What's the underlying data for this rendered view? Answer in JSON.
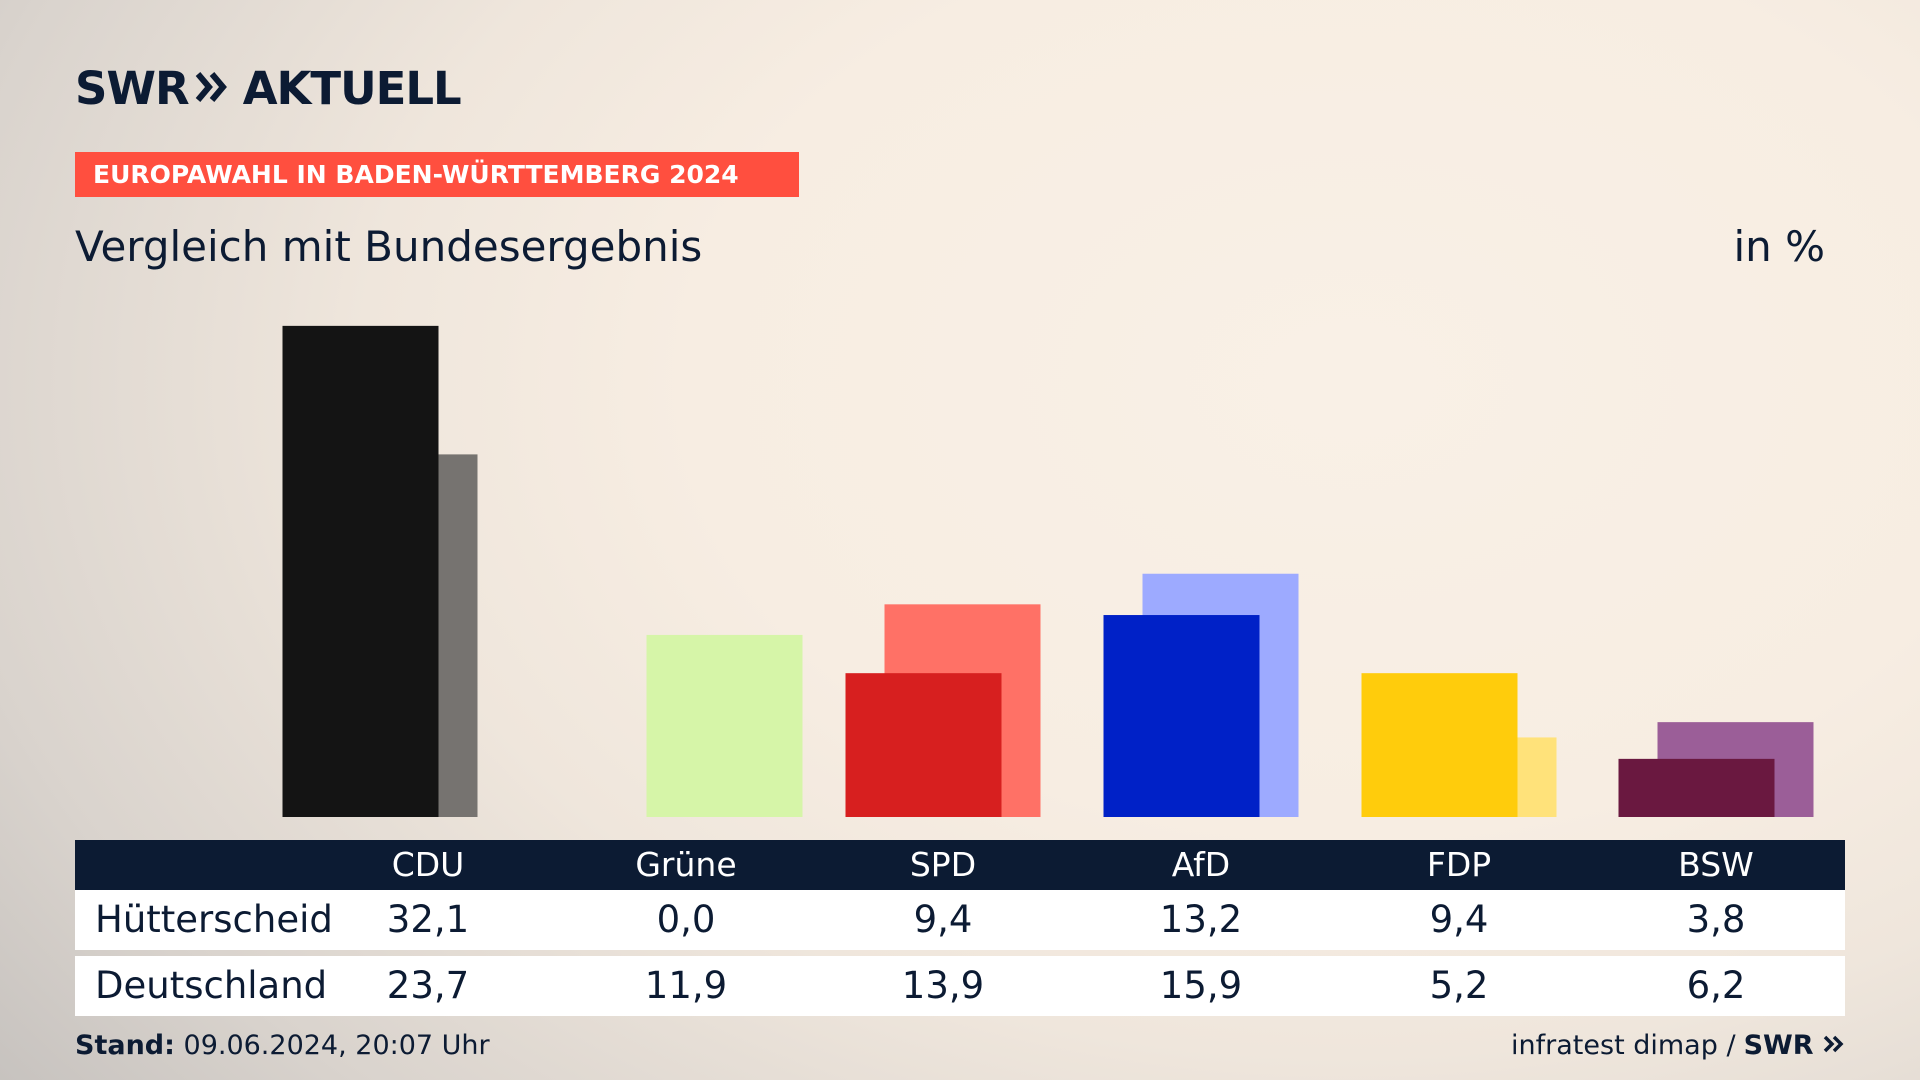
{
  "brand": {
    "logo_text": "SWR",
    "logo_suffix": "AKTUELL"
  },
  "header": {
    "kicker": "EUROPAWAHL IN BADEN-WÜRTTEMBERG 2024",
    "subtitle": "Vergleich mit Bundesergebnis",
    "unit": "in %"
  },
  "chart_data": {
    "type": "bar",
    "categories": [
      "CDU",
      "Grüne",
      "SPD",
      "AfD",
      "FDP",
      "BSW"
    ],
    "series": [
      {
        "name": "Hütterscheid",
        "values": [
          32.1,
          0.0,
          9.4,
          13.2,
          9.4,
          3.8
        ]
      },
      {
        "name": "Deutschland",
        "values": [
          23.7,
          11.9,
          13.9,
          15.9,
          5.2,
          6.2
        ]
      }
    ],
    "colors": {
      "primary": [
        "#141414",
        "#c0e87e",
        "#d71f1f",
        "#0021c7",
        "#ffcc0c",
        "#6a1840"
      ],
      "secondary": [
        "#767370",
        "#d6f5a8",
        "#ff7166",
        "#9daaff",
        "#ffe27a",
        "#9b5e98"
      ]
    },
    "ylim": [
      0,
      33
    ]
  },
  "table": {
    "header": [
      "CDU",
      "Grüne",
      "SPD",
      "AfD",
      "FDP",
      "BSW"
    ],
    "rows": [
      {
        "label": "Hütterscheid",
        "values": [
          "32,1",
          "0,0",
          "9,4",
          "13,2",
          "9,4",
          "3,8"
        ]
      },
      {
        "label": "Deutschland",
        "values": [
          "23,7",
          "11,9",
          "13,9",
          "15,9",
          "5,2",
          "6,2"
        ]
      }
    ]
  },
  "footer": {
    "stand_label": "Stand:",
    "stand_value": "09.06.2024, 20:07 Uhr",
    "source": "infratest dimap /",
    "source_logo": "SWR"
  }
}
